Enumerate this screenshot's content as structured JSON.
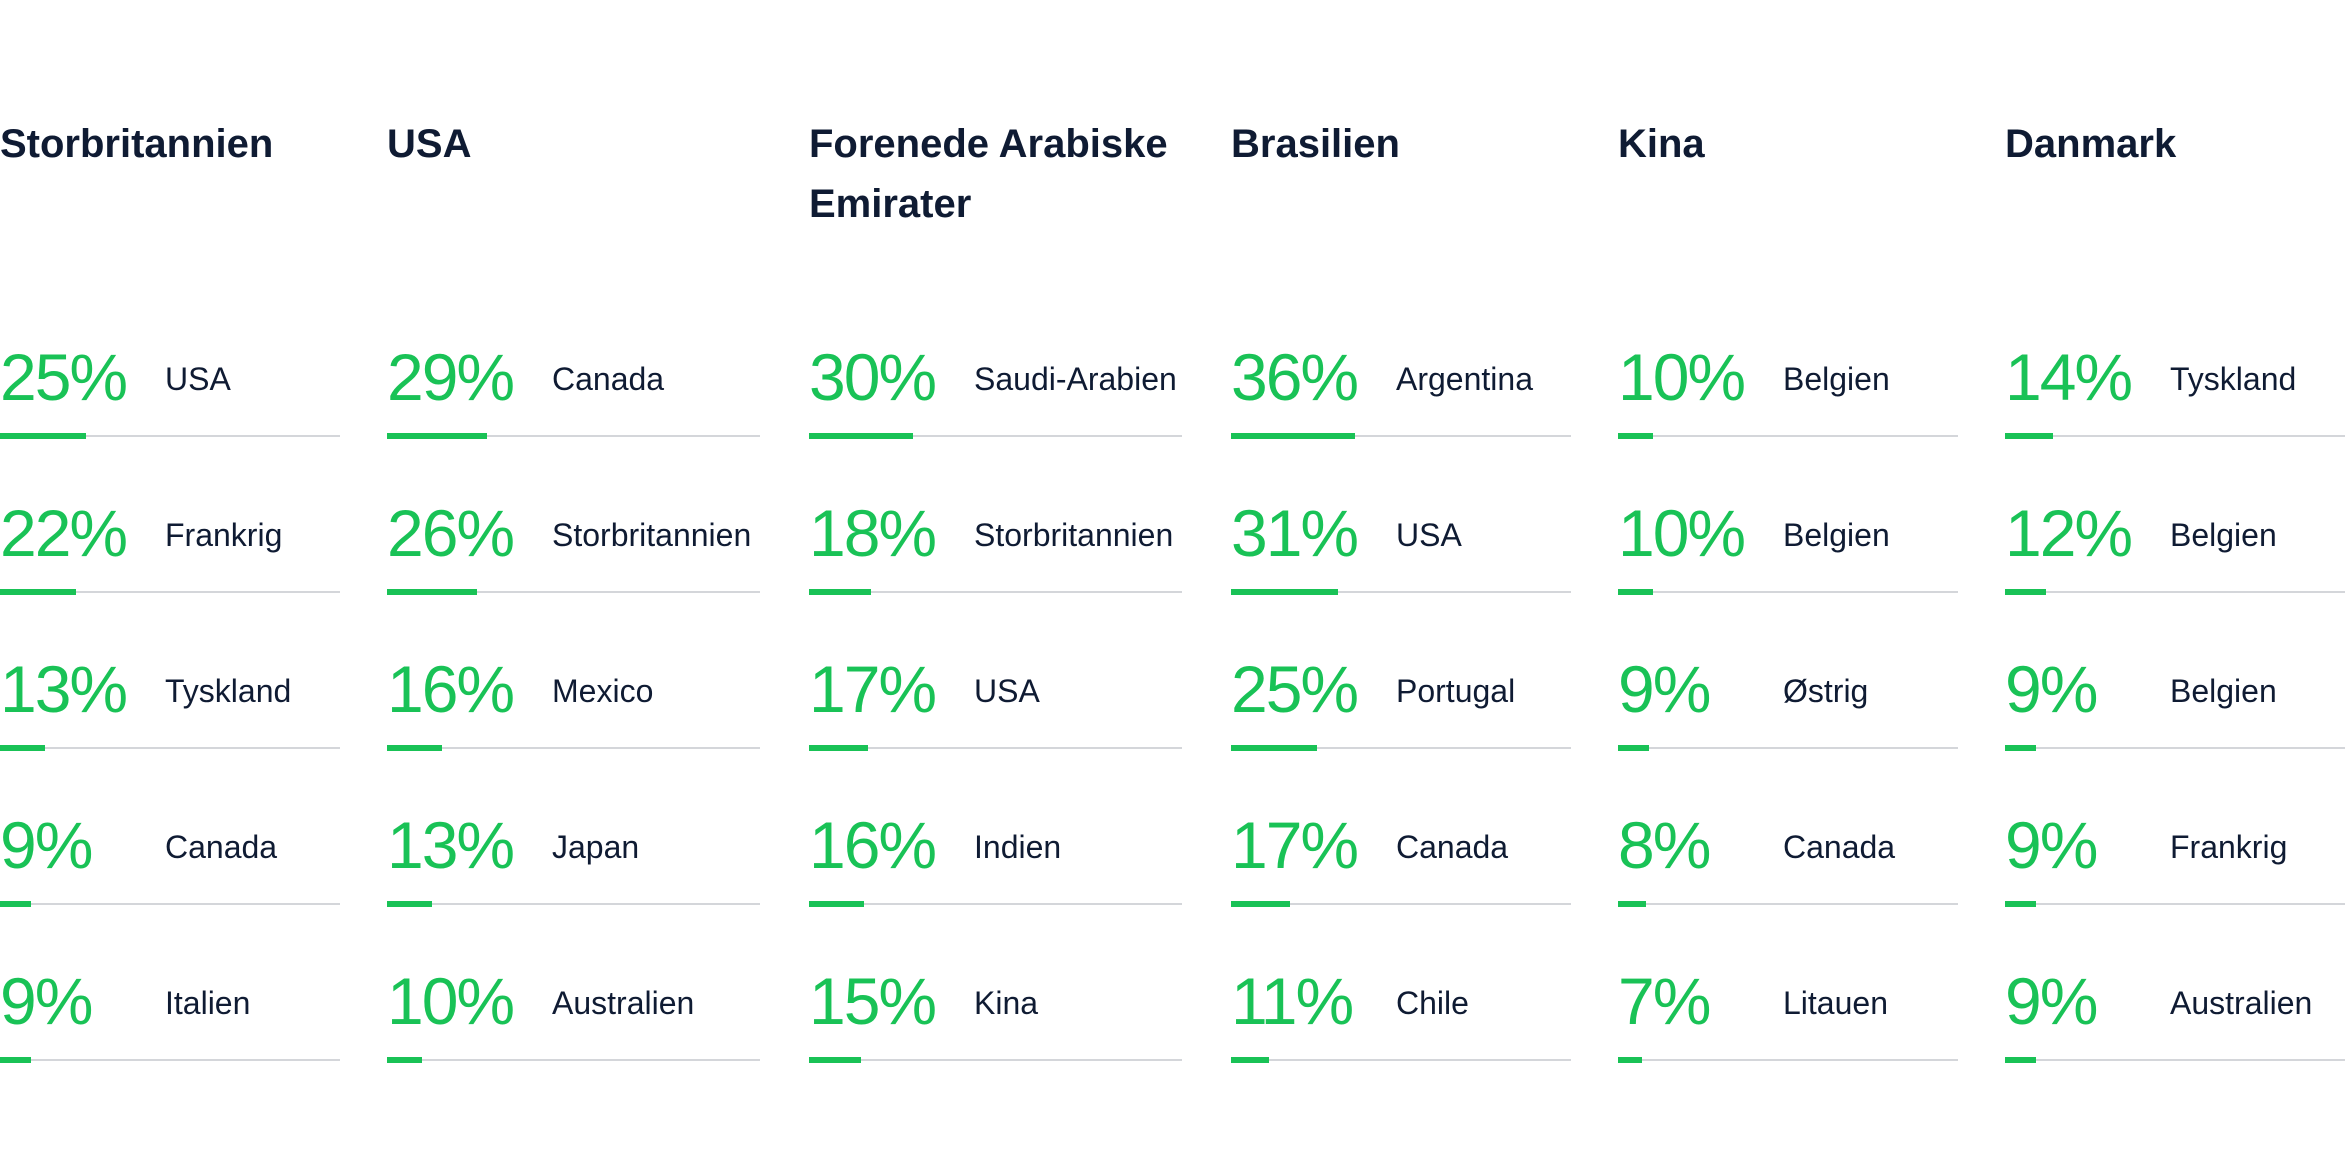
{
  "colors": {
    "accent": "#19c256",
    "text": "#0f1b33",
    "track": "#d4d6da"
  },
  "chart_data": {
    "type": "bar",
    "unit": "%",
    "value_max": 100,
    "groups": [
      {
        "title": "Storbritannien",
        "rows": [
          {
            "label": "USA",
            "value": 25,
            "text": "25%"
          },
          {
            "label": "Frankrig",
            "value": 22,
            "text": "22%"
          },
          {
            "label": "Tyskland",
            "value": 13,
            "text": "13%"
          },
          {
            "label": "Canada",
            "value": 9,
            "text": "9%"
          },
          {
            "label": "Italien",
            "value": 9,
            "text": "9%"
          }
        ]
      },
      {
        "title": "USA",
        "rows": [
          {
            "label": "Canada",
            "value": 29,
            "text": "29%"
          },
          {
            "label": "Storbritannien",
            "value": 26,
            "text": "26%"
          },
          {
            "label": "Mexico",
            "value": 16,
            "text": "16%"
          },
          {
            "label": "Japan",
            "value": 13,
            "text": "13%"
          },
          {
            "label": "Australien",
            "value": 10,
            "text": "10%"
          }
        ]
      },
      {
        "title": "Forenede Arabiske Emirater",
        "rows": [
          {
            "label": "Saudi-Arabien",
            "value": 30,
            "text": "30%"
          },
          {
            "label": "Storbritannien",
            "value": 18,
            "text": "18%"
          },
          {
            "label": "USA",
            "value": 17,
            "text": "17%"
          },
          {
            "label": "Indien",
            "value": 16,
            "text": "16%"
          },
          {
            "label": "Kina",
            "value": 15,
            "text": "15%"
          }
        ]
      },
      {
        "title": "Brasilien",
        "rows": [
          {
            "label": "Argentina",
            "value": 36,
            "text": "36%"
          },
          {
            "label": "USA",
            "value": 31,
            "text": "31%"
          },
          {
            "label": "Portugal",
            "value": 25,
            "text": "25%"
          },
          {
            "label": "Canada",
            "value": 17,
            "text": "17%"
          },
          {
            "label": "Chile",
            "value": 11,
            "text": "11%"
          }
        ]
      },
      {
        "title": "Kina",
        "rows": [
          {
            "label": "Belgien",
            "value": 10,
            "text": "10%"
          },
          {
            "label": "Belgien",
            "value": 10,
            "text": "10%"
          },
          {
            "label": "Østrig",
            "value": 9,
            "text": "9%"
          },
          {
            "label": "Canada",
            "value": 8,
            "text": "8%"
          },
          {
            "label": "Litauen",
            "value": 7,
            "text": "7%"
          }
        ]
      },
      {
        "title": "Danmark",
        "rows": [
          {
            "label": "Tyskland",
            "value": 14,
            "text": "14%"
          },
          {
            "label": "Belgien",
            "value": 12,
            "text": "12%"
          },
          {
            "label": "Belgien",
            "value": 9,
            "text": "9%"
          },
          {
            "label": "Frankrig",
            "value": 9,
            "text": "9%"
          },
          {
            "label": "Australien",
            "value": 9,
            "text": "9%"
          }
        ]
      }
    ]
  }
}
